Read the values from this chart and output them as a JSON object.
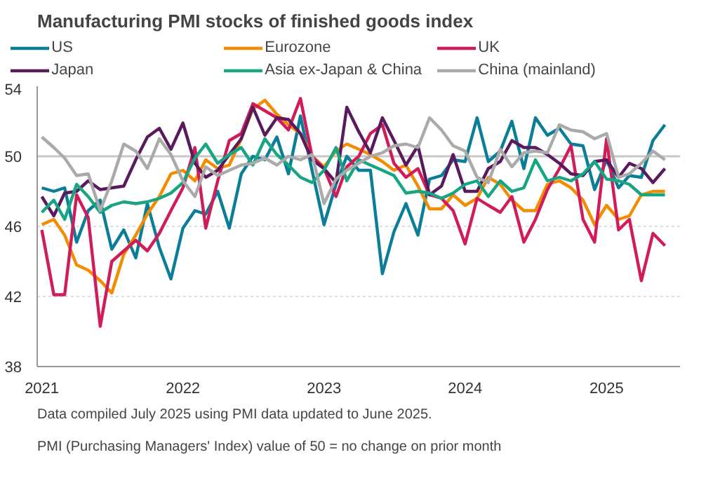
{
  "chart_data": {
    "type": "line",
    "title": "Manufacturing PMI stocks of finished goods index",
    "x": [
      "2021-01",
      "2021-02",
      "2021-03",
      "2021-04",
      "2021-05",
      "2021-06",
      "2021-07",
      "2021-08",
      "2021-09",
      "2021-10",
      "2021-11",
      "2021-12",
      "2022-01",
      "2022-02",
      "2022-03",
      "2022-04",
      "2022-05",
      "2022-06",
      "2022-07",
      "2022-08",
      "2022-09",
      "2022-10",
      "2022-11",
      "2022-12",
      "2023-01",
      "2023-02",
      "2023-03",
      "2023-04",
      "2023-05",
      "2023-06",
      "2023-07",
      "2023-08",
      "2023-09",
      "2023-10",
      "2023-11",
      "2023-12",
      "2024-01",
      "2024-02",
      "2024-03",
      "2024-04",
      "2024-05",
      "2024-06",
      "2024-07",
      "2024-08",
      "2024-09",
      "2024-10",
      "2024-11",
      "2024-12",
      "2025-01",
      "2025-02",
      "2025-03",
      "2025-04",
      "2025-05",
      "2025-06"
    ],
    "series": [
      {
        "name": "US",
        "color": "#0a7d97",
        "values": [
          48.2,
          48.0,
          48.2,
          45.1,
          46.9,
          47.5,
          44.7,
          45.8,
          44.2,
          47.3,
          44.8,
          43.0,
          45.9,
          46.9,
          46.7,
          48.0,
          45.9,
          49.0,
          50.0,
          49.8,
          51.1,
          49.0,
          52.3,
          49.2,
          46.1,
          48.4,
          50.0,
          49.2,
          49.2,
          43.3,
          45.7,
          47.3,
          45.5,
          48.7,
          48.9,
          49.8,
          49.7,
          52.2,
          49.7,
          50.3,
          52.0,
          49.3,
          52.2,
          51.2,
          51.6,
          50.7,
          50.6,
          48.1,
          49.8,
          48.2,
          48.9,
          48.8,
          50.9,
          51.8
        ]
      },
      {
        "name": "Eurozone",
        "color": "#f28c00",
        "values": [
          46.1,
          46.4,
          45.5,
          43.8,
          43.5,
          42.9,
          42.2,
          44.4,
          45.5,
          46.7,
          47.7,
          49.0,
          49.2,
          48.6,
          49.8,
          49.3,
          49.5,
          51.0,
          52.7,
          53.2,
          52.4,
          51.8,
          51.3,
          50.0,
          49.4,
          50.3,
          50.7,
          50.4,
          50.1,
          49.7,
          49.2,
          49.5,
          48.3,
          47.0,
          47.0,
          47.8,
          47.2,
          47.6,
          48.8,
          48.4,
          47.5,
          46.9,
          46.9,
          48.4,
          48.6,
          48.2,
          47.5,
          46.1,
          47.2,
          46.4,
          46.6,
          47.8,
          48.0,
          48.0
        ]
      },
      {
        "name": "UK",
        "color": "#d01c5b",
        "values": [
          45.8,
          42.1,
          42.1,
          47.8,
          46.5,
          40.3,
          44.0,
          44.6,
          45.2,
          44.6,
          45.6,
          46.9,
          48.2,
          50.5,
          45.9,
          48.6,
          50.9,
          51.3,
          53.0,
          52.6,
          52.2,
          51.5,
          53.3,
          50.0,
          49.3,
          47.7,
          49.4,
          50.0,
          51.3,
          51.8,
          49.6,
          48.8,
          49.3,
          47.8,
          47.6,
          46.9,
          45.0,
          47.6,
          47.2,
          46.8,
          47.7,
          45.1,
          46.4,
          48.1,
          49.3,
          50.6,
          46.4,
          45.1,
          51.0,
          45.8,
          46.4,
          42.9,
          45.6,
          44.9
        ]
      },
      {
        "name": "Japan",
        "color": "#5a1a5e",
        "values": [
          47.7,
          46.6,
          47.9,
          48.0,
          48.6,
          48.1,
          48.2,
          48.3,
          49.8,
          51.1,
          51.6,
          50.4,
          51.9,
          49.6,
          48.8,
          49.2,
          50.1,
          51.0,
          52.8,
          51.2,
          52.2,
          52.1,
          51.3,
          49.8,
          49.3,
          48.5,
          52.8,
          51.4,
          50.2,
          52.2,
          50.9,
          49.5,
          50.6,
          47.8,
          48.3,
          50.1,
          48.0,
          48.0,
          49.3,
          49.7,
          50.9,
          50.5,
          50.5,
          50.1,
          49.6,
          49.0,
          48.9,
          49.7,
          49.8,
          48.8,
          49.6,
          49.3,
          48.5,
          49.3
        ]
      },
      {
        "name": "Asia ex-Japan & China",
        "color": "#17a584",
        "values": [
          46.8,
          47.5,
          46.4,
          48.4,
          47.7,
          46.8,
          47.2,
          47.4,
          47.3,
          47.4,
          47.6,
          47.9,
          48.5,
          49.9,
          50.7,
          49.6,
          50.1,
          50.5,
          49.5,
          51.0,
          50.1,
          49.5,
          48.8,
          48.5,
          49.2,
          50.5,
          48.6,
          49.8,
          49.5,
          49.2,
          48.9,
          47.9,
          48.0,
          47.9,
          47.6,
          47.9,
          48.4,
          48.6,
          47.7,
          48.6,
          48.0,
          48.2,
          49.8,
          48.6,
          48.8,
          48.6,
          49.0,
          49.7,
          48.7,
          48.6,
          48.4,
          47.8,
          47.8,
          47.8
        ]
      },
      {
        "name": "China (mainland)",
        "color": "#aaaaaa",
        "values": [
          51.1,
          50.5,
          49.9,
          48.9,
          49.0,
          46.9,
          48.6,
          50.7,
          50.3,
          49.3,
          51.0,
          50.1,
          48.6,
          47.7,
          49.4,
          48.9,
          49.2,
          49.5,
          49.6,
          49.9,
          49.5,
          50.0,
          49.8,
          50.1,
          47.3,
          48.7,
          49.2,
          49.6,
          50.0,
          50.2,
          50.6,
          50.7,
          50.5,
          52.2,
          51.5,
          50.6,
          50.3,
          48.8,
          48.5,
          50.4,
          49.4,
          50.2,
          50.3,
          50.2,
          51.8,
          51.5,
          51.4,
          51.0,
          51.3,
          48.8,
          49.0,
          49.6,
          50.3,
          49.8
        ]
      }
    ],
    "xlim": [
      "2020-12-20",
      "2025-07-10"
    ],
    "xticks": [
      "2021",
      "2022",
      "2023",
      "2024",
      "2025"
    ],
    "ylim": [
      38,
      54
    ],
    "yticks": [
      38,
      42,
      46,
      50,
      54
    ],
    "ref_lines": [
      {
        "axis": "y",
        "value": 50,
        "label": null,
        "color": "#c8c8c8"
      }
    ],
    "grid": "y",
    "legend": "top",
    "line_style": "solid",
    "marker": "none",
    "annotations": [
      "Data compiled July 2025 using PMI data updated to June 2025.",
      "PMI (Purchasing Managers' Index) value of 50 = no change on prior month"
    ]
  }
}
